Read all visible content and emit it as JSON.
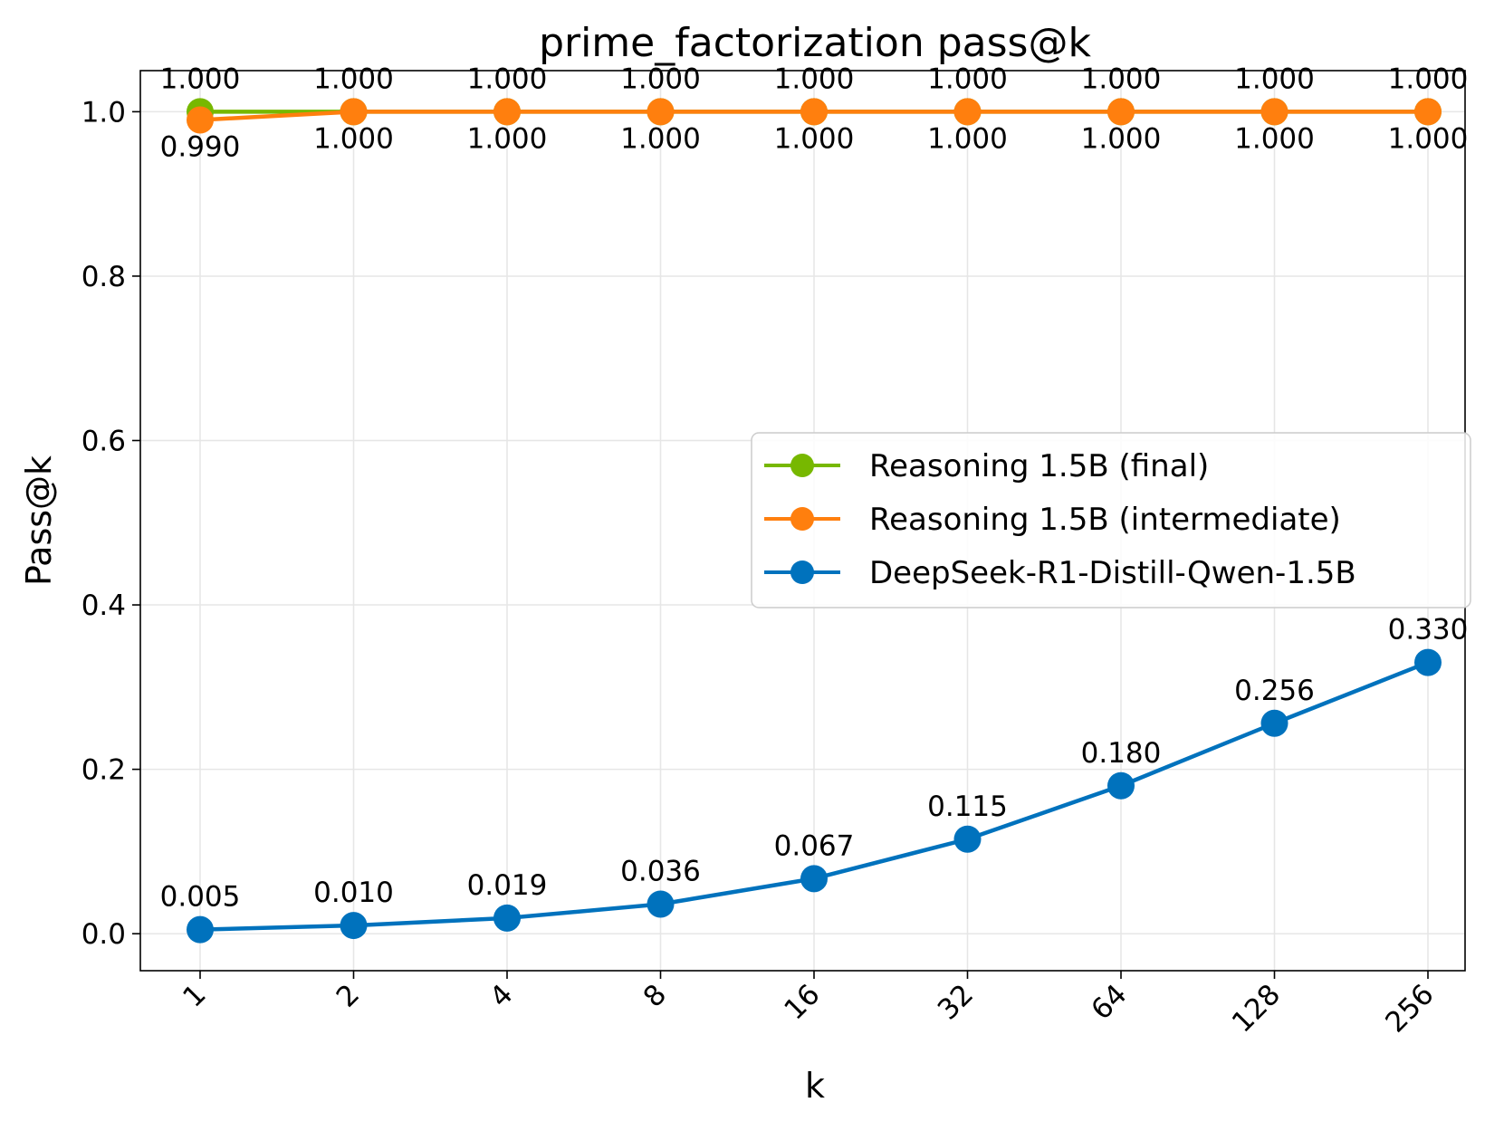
{
  "chart_data": {
    "type": "line",
    "title": "prime_factorization pass@k",
    "xlabel": "k",
    "ylabel": "Pass@k",
    "categories": [
      "1",
      "2",
      "4",
      "8",
      "16",
      "32",
      "64",
      "128",
      "256"
    ],
    "ylim": [
      -0.045,
      1.05
    ],
    "yticks": [
      0.0,
      0.2,
      0.4,
      0.6,
      0.8,
      1.0
    ],
    "ytick_labels": [
      "0.0",
      "0.2",
      "0.4",
      "0.6",
      "0.8",
      "1.0"
    ],
    "grid": true,
    "legend_position": "center-right",
    "series": [
      {
        "name": "Reasoning 1.5B (final)",
        "color": "#77b800",
        "values": [
          1.0,
          1.0,
          1.0,
          1.0,
          1.0,
          1.0,
          1.0,
          1.0,
          1.0
        ],
        "labels": [
          "1.000",
          "1.000",
          "1.000",
          "1.000",
          "1.000",
          "1.000",
          "1.000",
          "1.000",
          "1.000"
        ],
        "label_placement": "above"
      },
      {
        "name": "Reasoning 1.5B (intermediate)",
        "color": "#ff7f0e",
        "values": [
          0.99,
          1.0,
          1.0,
          1.0,
          1.0,
          1.0,
          1.0,
          1.0,
          1.0
        ],
        "labels": [
          "0.990",
          "1.000",
          "1.000",
          "1.000",
          "1.000",
          "1.000",
          "1.000",
          "1.000",
          "1.000"
        ],
        "label_placement": "below"
      },
      {
        "name": "DeepSeek-R1-Distill-Qwen-1.5B",
        "color": "#0072bd",
        "values": [
          0.005,
          0.01,
          0.019,
          0.036,
          0.067,
          0.115,
          0.18,
          0.256,
          0.33
        ],
        "labels": [
          "0.005",
          "0.010",
          "0.019",
          "0.036",
          "0.067",
          "0.115",
          "0.180",
          "0.256",
          "0.330"
        ],
        "label_placement": "above"
      }
    ]
  }
}
